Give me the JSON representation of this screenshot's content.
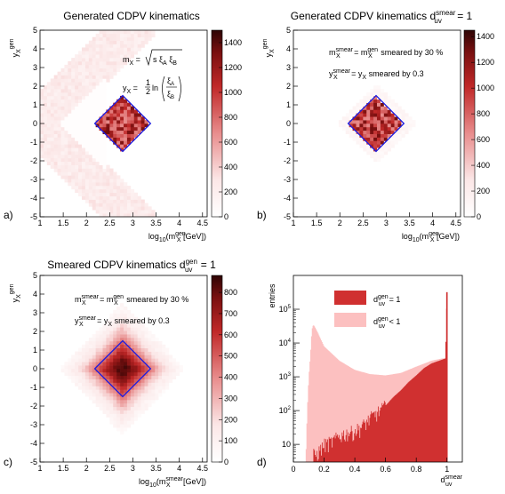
{
  "chart_data": [
    {
      "id": "a",
      "type": "heatmap",
      "title": "Generated CDPV kinematics",
      "xlabel": "log10(m_X^gen [GeV])",
      "ylabel": "y_X^gen",
      "xlim": [
        1,
        4.6
      ],
      "ylim": [
        -5,
        5
      ],
      "xticks": [
        "1",
        "1.5",
        "2",
        "2.5",
        "3",
        "3.5",
        "4",
        "4.5"
      ],
      "yticks": [
        "-5",
        "-4",
        "-3",
        "-2",
        "-1",
        "0",
        "1",
        "2",
        "3",
        "4",
        "5"
      ],
      "colorbar": {
        "range": [
          0,
          1500
        ],
        "ticks": [
          "0",
          "200",
          "400",
          "600",
          "800",
          "1000",
          "1200",
          "1400"
        ]
      },
      "panel_label": "a)",
      "annotations": [
        "m_X = sqrt(s ξ_A ξ_B)",
        "y_X = 1/2 ln(ξ_A / ξ_B)"
      ],
      "signal_region": {
        "x": [
          2.18,
          2.78,
          3.38,
          2.78
        ],
        "y": [
          0,
          1.5,
          0,
          -1.5
        ]
      },
      "shape": "generated"
    },
    {
      "id": "b",
      "type": "heatmap",
      "title": "Generated CDPV kinematics d_uv^smear = 1",
      "xlabel": "log10(m_X^gen [GeV])",
      "ylabel": "y_X^gen",
      "xlim": [
        1,
        4.6
      ],
      "ylim": [
        -5,
        5
      ],
      "xticks": [
        "1",
        "1.5",
        "2",
        "2.5",
        "3",
        "3.5",
        "4",
        "4.5"
      ],
      "yticks": [
        "-5",
        "-4",
        "-3",
        "-2",
        "-1",
        "0",
        "1",
        "2",
        "3",
        "4",
        "5"
      ],
      "colorbar": {
        "range": [
          0,
          1450
        ],
        "ticks": [
          "0",
          "200",
          "400",
          "600",
          "800",
          "1000",
          "1200",
          "1400"
        ]
      },
      "panel_label": "b)",
      "annotations": [
        "m_X^smear = m_X^gen smeared by 30 %",
        "y_X^smear = y_X smeared by 0.3"
      ],
      "signal_region": {
        "x": [
          2.18,
          2.78,
          3.38,
          2.78
        ],
        "y": [
          0,
          1.5,
          0,
          -1.5
        ]
      },
      "shape": "selected"
    },
    {
      "id": "c",
      "type": "heatmap",
      "title": "Smeared CDPV kinematics d_uv^gen = 1",
      "xlabel": "log10(m_X^smear [GeV])",
      "ylabel": "y_X^gen",
      "xlim": [
        1,
        4.6
      ],
      "ylim": [
        -5,
        5
      ],
      "xticks": [
        "1",
        "1.5",
        "2",
        "2.5",
        "3",
        "3.5",
        "4",
        "4.5"
      ],
      "yticks": [
        "-5",
        "-4",
        "-3",
        "-2",
        "-1",
        "0",
        "1",
        "2",
        "3",
        "4",
        "5"
      ],
      "colorbar": {
        "range": [
          0,
          880
        ],
        "ticks": [
          "0",
          "100",
          "200",
          "300",
          "400",
          "500",
          "600",
          "700",
          "800"
        ]
      },
      "panel_label": "c)",
      "annotations": [
        "m_X^smear = m_X^gen smeared by 30 %",
        "y_X^smear = y_X smeared by 0.3"
      ],
      "signal_region": {
        "x": [
          2.18,
          2.78,
          3.38,
          2.78
        ],
        "y": [
          0,
          1.5,
          0,
          -1.5
        ]
      },
      "shape": "smeared"
    },
    {
      "id": "d",
      "type": "bar",
      "title": "",
      "xlabel": "d_uv^smear",
      "ylabel": "entries",
      "xlim": [
        0,
        1.1
      ],
      "ylim": [
        3,
        1000000
      ],
      "log_y": true,
      "xticks": [
        "0",
        "0.2",
        "0.4",
        "0.6",
        "0.8",
        "1"
      ],
      "yticks": [
        "10",
        "10^2",
        "10^3",
        "10^4",
        "10^5"
      ],
      "panel_label": "d)",
      "legend_position": "top-center",
      "series": [
        {
          "name": "d_uv^gen < 1",
          "color": "#fcc0c0",
          "x": [
            0.08,
            0.09,
            0.1,
            0.11,
            0.12,
            0.13,
            0.14,
            0.16,
            0.2,
            0.3,
            0.4,
            0.5,
            0.6,
            0.7,
            0.8,
            0.9,
            0.97,
            0.99
          ],
          "y": [
            3,
            100,
            1000,
            4000,
            25000,
            35000,
            30000,
            20000,
            8000,
            3000,
            1600,
            1200,
            1100,
            1300,
            2000,
            3000,
            3500,
            3500
          ]
        },
        {
          "name": "d_uv^gen = 1",
          "color": "#d03030",
          "x": [
            0.13,
            0.15,
            0.2,
            0.25,
            0.3,
            0.35,
            0.4,
            0.45,
            0.5,
            0.55,
            0.6,
            0.65,
            0.7,
            0.75,
            0.8,
            0.85,
            0.9,
            0.95,
            0.99,
            1.0
          ],
          "y": [
            5,
            5,
            10,
            12,
            18,
            22,
            25,
            35,
            60,
            90,
            140,
            250,
            400,
            700,
            1100,
            1800,
            2500,
            3000,
            3500,
            320000
          ]
        }
      ]
    }
  ],
  "text": {
    "a_title": "Generated CDPV kinematics",
    "b_title_main": "Generated CDPV kinematics d",
    "b_title_sub": "uv",
    "b_title_sup": "smear",
    "b_title_tail": " = 1",
    "c_title_main": "Smeared CDPV kinematics d",
    "c_title_sub": "uv",
    "c_title_sup": "gen",
    "c_title_tail": " = 1",
    "a_label": "a)",
    "b_label": "b)",
    "c_label": "c)",
    "d_label": "d)",
    "xlab_gen_pre": "log",
    "xlab_gen_sub10": "10",
    "xlab_gen_mid": "(m",
    "xlab_gen_sup": "gen",
    "xlab_gen_subX": "X",
    "xlab_gen_tail": " [GeV])",
    "xlab_smear_sup": "smear",
    "ylab_main": "y",
    "ylab_sub": "X",
    "ylab_sup": "gen",
    "a_ann1": "m  = √s ξ  ξ",
    "a_ann2": "y  = ",
    "a_ann2b": "ln",
    "ann_mx_smear": "m",
    "ann_smear_sup": "smear",
    "ann_x_sub": "X",
    "ann_eq_m": " = m",
    "ann_gen_sup": "gen",
    "ann_smear_30": " smeared by 30 %",
    "ann_y": "y",
    "ann_eq_y": " = y",
    "ann_smear_03": " smeared by 0.3",
    "d_ylabel": "entries",
    "d_xlabel_main": "d",
    "d_xlabel_sup": "smear",
    "d_xlabel_sub": "uv",
    "leg_d": "d",
    "leg_gen_sup": "gen",
    "leg_uv_sub": "uv",
    "leg_eq1": " = 1",
    "leg_lt1": " < 1"
  }
}
